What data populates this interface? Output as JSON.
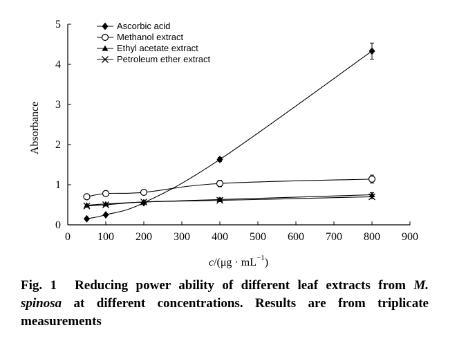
{
  "chart_data": {
    "type": "line",
    "xlabel_prefix": "c",
    "xlabel_suffix": "/(μg · mL",
    "xlabel_sup": "−1",
    "xlabel_close": ")",
    "ylabel": "Absorbance",
    "xlim": [
      0,
      900
    ],
    "ylim": [
      0,
      5
    ],
    "xticks": [
      0,
      100,
      200,
      300,
      400,
      500,
      600,
      700,
      800,
      900
    ],
    "yticks": [
      0,
      1,
      2,
      3,
      4,
      5
    ],
    "legend_position": "top-left",
    "grid": false,
    "series": [
      {
        "name": "Ascorbic acid",
        "marker": "diamond",
        "x": [
          50,
          100,
          200,
          400,
          800
        ],
        "y": [
          0.15,
          0.25,
          0.55,
          1.63,
          4.33
        ],
        "err": [
          0,
          0,
          0,
          0.05,
          0.2
        ]
      },
      {
        "name": "Methanol extract",
        "marker": "circle",
        "x": [
          50,
          100,
          200,
          400,
          800
        ],
        "y": [
          0.7,
          0.78,
          0.81,
          1.03,
          1.14
        ],
        "err": [
          0,
          0.05,
          0.05,
          0.08,
          0.1
        ]
      },
      {
        "name": "Ethyl acetate extract",
        "marker": "triangle",
        "x": [
          50,
          100,
          200,
          400,
          800
        ],
        "y": [
          0.49,
          0.52,
          0.57,
          0.63,
          0.75
        ],
        "err": [
          0,
          0,
          0,
          0.04,
          0.05
        ]
      },
      {
        "name": "Petroleum ether extract",
        "marker": "cross",
        "x": [
          50,
          100,
          200,
          400,
          800
        ],
        "y": [
          0.47,
          0.5,
          0.57,
          0.61,
          0.7
        ],
        "err": [
          0,
          0,
          0,
          0.03,
          0.05
        ]
      }
    ]
  },
  "caption": {
    "fig_num": "Fig. 1",
    "text_before": "Reducing power ability of different leaf extracts from ",
    "species": "M. spinosa",
    "text_after": " at different concentrations. Results are from triplicate measurements"
  }
}
